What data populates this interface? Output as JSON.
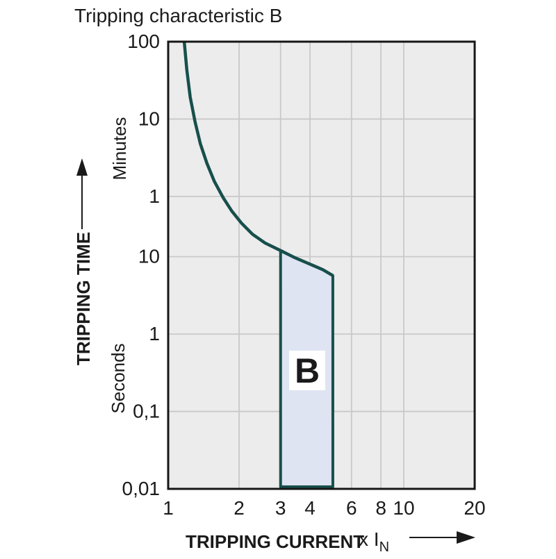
{
  "title": "Tripping characteristic B",
  "y_axis_title": "TRIPPING TIME",
  "x_axis_title": "TRIPPING CURRENT",
  "x_axis_unit_prefix": "x I",
  "x_axis_unit_sub": "N",
  "unit_minutes": "Minutes",
  "unit_seconds": "Seconds",
  "band_label": "B",
  "colors": {
    "curve": "#174f4b",
    "band_fill": "#dfe4f2",
    "band_stroke": "#174f4b",
    "plot_bg": "#ececec",
    "grid": "#c9c9c9",
    "border": "#161616",
    "text": "#1a1a1a",
    "label_box": "#ffffff"
  },
  "chart_data": {
    "type": "line",
    "title": "Tripping characteristic B",
    "xlabel": "TRIPPING CURRENT x IN",
    "ylabel": "TRIPPING TIME",
    "x_scale": "log",
    "y_scale": "log",
    "x_range": [
      1,
      20
    ],
    "y_range": [
      0.01,
      6000
    ],
    "grid": true,
    "x_ticks": [
      {
        "v": 1,
        "label": "1"
      },
      {
        "v": 2,
        "label": "2"
      },
      {
        "v": 3,
        "label": "3"
      },
      {
        "v": 4,
        "label": "4"
      },
      {
        "v": 6,
        "label": "6"
      },
      {
        "v": 8,
        "label": "8"
      },
      {
        "v": 10,
        "label": "10"
      },
      {
        "v": 20,
        "label": "20"
      }
    ],
    "y_ticks": [
      {
        "t": 6000,
        "label": "100",
        "unit": "minutes"
      },
      {
        "t": 600,
        "label": "10",
        "unit": "minutes"
      },
      {
        "t": 60,
        "label": "1",
        "unit": "minutes"
      },
      {
        "t": 10,
        "label": "10",
        "unit": "seconds"
      },
      {
        "t": 1,
        "label": "1",
        "unit": "seconds"
      },
      {
        "t": 0.1,
        "label": "0,1",
        "unit": "seconds"
      },
      {
        "t": 0.01,
        "label": "0,01",
        "unit": "seconds"
      }
    ],
    "x_gridlines": [
      2,
      3,
      4,
      6,
      8,
      10
    ],
    "y_gridlines": [
      600,
      60,
      10,
      1,
      0.1
    ],
    "series": [
      {
        "name": "tripping-limit-curve",
        "points_x_in_multiples_of_In_t_in_seconds": true,
        "points": [
          [
            1.17,
            6000
          ],
          [
            1.2,
            2600
          ],
          [
            1.24,
            1150
          ],
          [
            1.3,
            557
          ],
          [
            1.37,
            287
          ],
          [
            1.46,
            161
          ],
          [
            1.57,
            94
          ],
          [
            1.71,
            58
          ],
          [
            1.86,
            39
          ],
          [
            2.05,
            27
          ],
          [
            2.28,
            19.5
          ],
          [
            2.58,
            15
          ],
          [
            3.0,
            12
          ],
          [
            3.45,
            9.7
          ],
          [
            4.0,
            8
          ],
          [
            4.53,
            6.8
          ],
          [
            5.0,
            5.7
          ]
        ]
      }
    ],
    "band": {
      "label": "B",
      "x_from": 3,
      "x_to": 5,
      "t_top_at_x_from": 12,
      "t_top_at_x_to": 5.7,
      "t_bottom": 0.01,
      "top_follows_curve": true
    }
  }
}
